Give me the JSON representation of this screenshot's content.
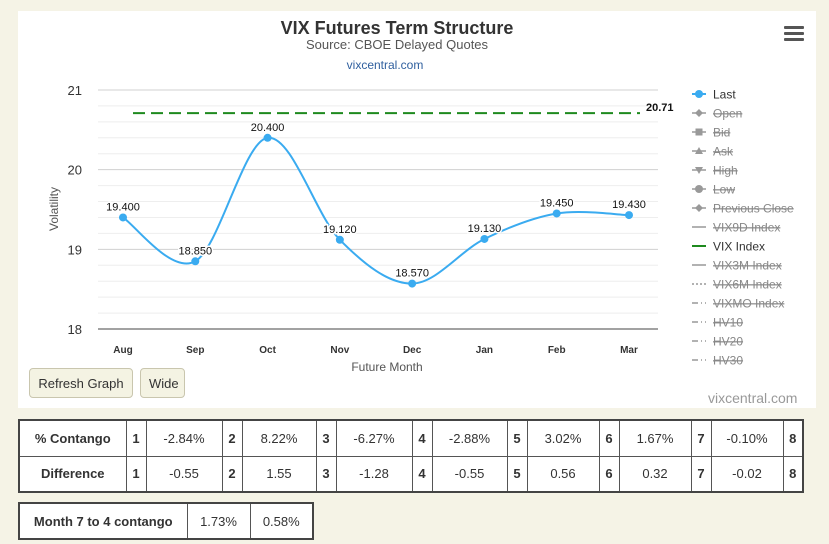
{
  "chart_data": {
    "type": "line",
    "title": "VIX Futures Term Structure",
    "subtitle": "Source: CBOE Delayed Quotes",
    "credit_top": "vixcentral.com",
    "xlabel": "Future Month",
    "ylabel": "Volatility",
    "ylim": [
      18,
      21
    ],
    "yticks": [
      "18",
      "19",
      "20",
      "21"
    ],
    "grid": true,
    "legend_position": "right",
    "categories": [
      "Aug",
      "Sep",
      "Oct",
      "Nov",
      "Dec",
      "Jan",
      "Feb",
      "Mar"
    ],
    "series": [
      {
        "name": "Last",
        "values": [
          19.4,
          18.85,
          20.4,
          19.12,
          18.57,
          19.13,
          19.45,
          19.43
        ],
        "labels": [
          "19.400",
          "18.850",
          "20.400",
          "19.120",
          "18.570",
          "19.130",
          "19.450",
          "19.430"
        ],
        "color": "#3aabf0"
      },
      {
        "name": "VIX Index",
        "value": 20.71,
        "label": "20.71",
        "color": "#1e8a1e"
      }
    ],
    "legend": [
      {
        "name": "Last",
        "active": true,
        "symbol": "circle"
      },
      {
        "name": "Open",
        "active": false,
        "symbol": "diamond"
      },
      {
        "name": "Bid",
        "active": false,
        "symbol": "square"
      },
      {
        "name": "Ask",
        "active": false,
        "symbol": "triangle"
      },
      {
        "name": "High",
        "active": false,
        "symbol": "triangle-down"
      },
      {
        "name": "Low",
        "active": false,
        "symbol": "circle"
      },
      {
        "name": "Previous Close",
        "active": false,
        "symbol": "diamond"
      },
      {
        "name": "VIX9D Index",
        "active": false,
        "symbol": "solid"
      },
      {
        "name": "VIX Index",
        "active": true,
        "symbol": "solid",
        "color": "#1e8a1e"
      },
      {
        "name": "VIX3M Index",
        "active": false,
        "symbol": "solid"
      },
      {
        "name": "VIX6M Index",
        "active": false,
        "symbol": "dotted"
      },
      {
        "name": "VIXMO Index",
        "active": false,
        "symbol": "dashdot"
      },
      {
        "name": "HV10",
        "active": false,
        "symbol": "dashdot"
      },
      {
        "name": "HV20",
        "active": false,
        "symbol": "dashdot"
      },
      {
        "name": "HV30",
        "active": false,
        "symbol": "dashdot"
      }
    ]
  },
  "controls": {
    "refresh_label": "Refresh Graph",
    "wide_label": "Wide"
  },
  "watermark": "vixcentral.com",
  "contango": {
    "row1_label": "% Contango",
    "row2_label": "Difference",
    "months": [
      "1",
      "2",
      "3",
      "4",
      "5",
      "6",
      "7",
      "8"
    ],
    "pct": [
      "-2.84%",
      "8.22%",
      "-6.27%",
      "-2.88%",
      "3.02%",
      "1.67%",
      "-0.10%"
    ],
    "diff": [
      "-0.55",
      "1.55",
      "-1.28",
      "-0.55",
      "0.56",
      "0.32",
      "-0.02"
    ]
  },
  "month74": {
    "label": "Month 7 to 4 contango",
    "v1": "1.73%",
    "v2": "0.58%"
  }
}
